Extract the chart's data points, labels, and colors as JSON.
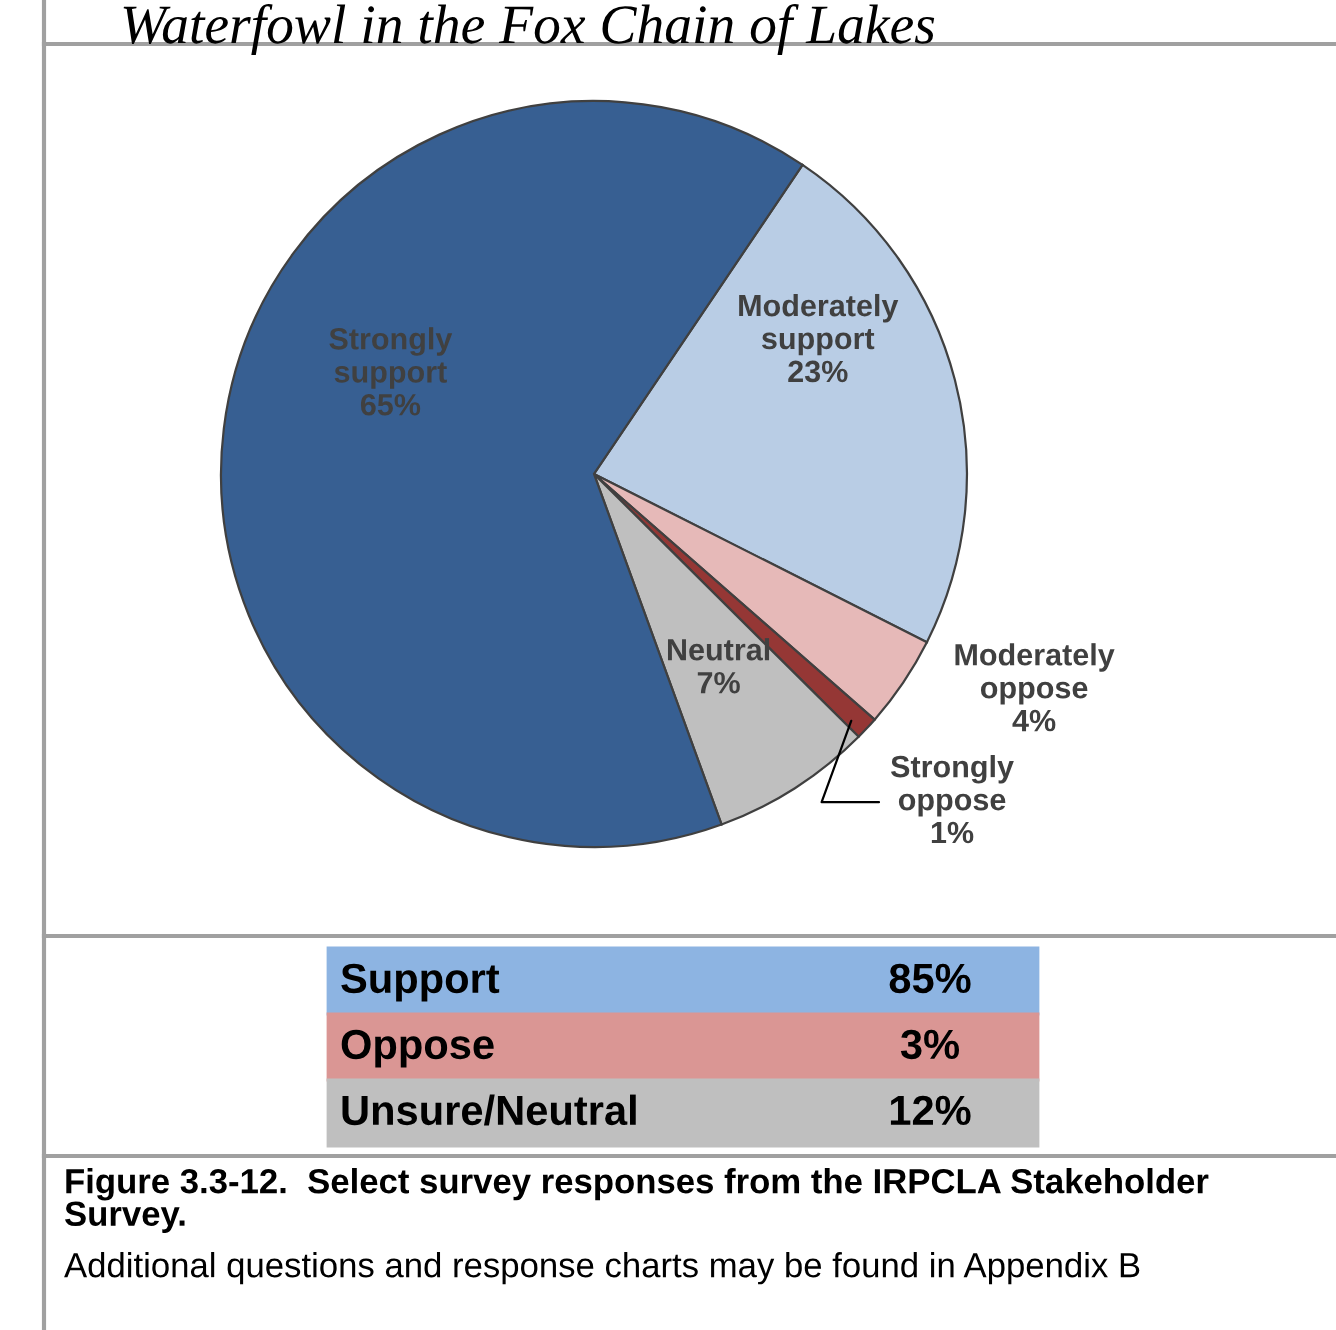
{
  "chart_data": {
    "type": "pie",
    "title": "Waterfowl in the Fox Chain of Lakes",
    "categories": [
      "Moderately support",
      "Moderately oppose",
      "Strongly oppose",
      "Neutral",
      "Strongly support"
    ],
    "values": [
      23,
      4,
      1,
      7,
      65
    ],
    "colors": [
      "#b9cde5",
      "#e6b9b8",
      "#953735",
      "#bfbfbf",
      "#375f92"
    ],
    "value_labels": [
      "23%",
      "4%",
      "1%",
      "7%",
      "65%"
    ],
    "annotations": [
      "Support  85%",
      "Oppose  3%",
      "Unsure/Neutral  12%",
      "Figure 3.3-12.  Select survey responses from the IRPCLA Stakeholder Survey.",
      "Additional questions and response charts may be found in Appendix B"
    ]
  }
}
